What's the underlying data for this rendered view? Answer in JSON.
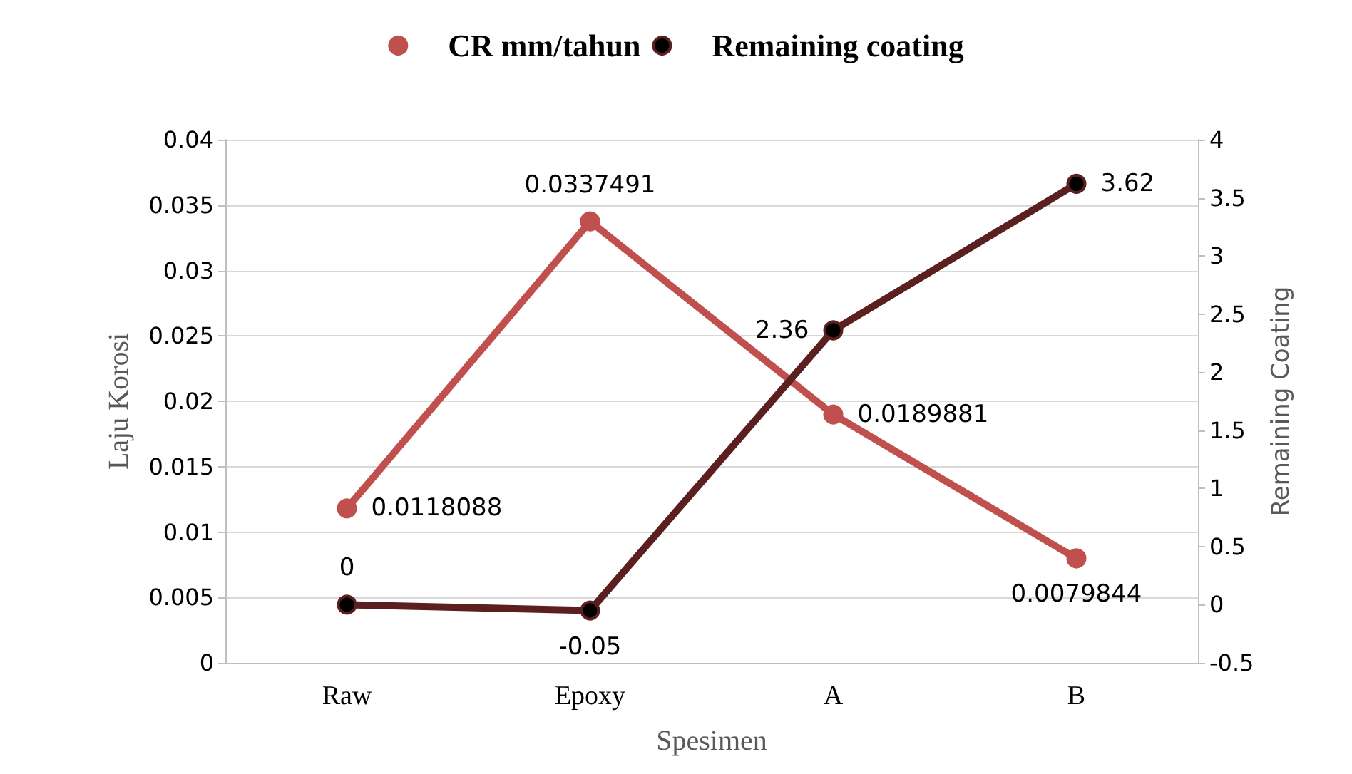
{
  "chart_data": {
    "type": "line",
    "xlabel": "Spesimen",
    "ylabel": "Laju Korosi",
    "y2label": "Remaining Coating",
    "categories": [
      "Raw",
      "Epoxy",
      "A",
      "B"
    ],
    "series": [
      {
        "name": "CR mm/tahun",
        "color": "#c0504d",
        "values": [
          0.0118088,
          0.0337491,
          0.0189881,
          0.0079844
        ]
      },
      {
        "name": "Remaining coating",
        "color": "#5c1f1f",
        "axis": "y2",
        "values": [
          0,
          -0.05,
          2.36,
          3.62
        ]
      }
    ],
    "ylim": [
      0,
      0.04
    ],
    "yticks": [
      0,
      0.005,
      0.01,
      0.015,
      0.02,
      0.025,
      0.03,
      0.035,
      0.04
    ],
    "y2lim": [
      -0.5,
      4
    ],
    "y2ticks": [
      -0.5,
      0,
      0.5,
      1,
      1.5,
      2,
      2.5,
      3,
      3.5,
      4
    ],
    "grid": "y",
    "legend": "top",
    "marker": "circle",
    "line_style": "solid",
    "data_labels": true
  }
}
